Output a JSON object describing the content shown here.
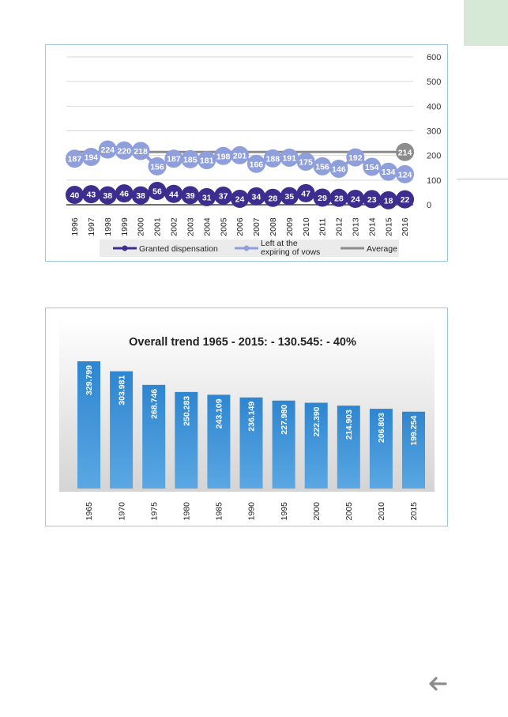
{
  "page": {
    "back_arrow_icon": "arrow-left-icon",
    "corner_tab_color": "#d6e8d6"
  },
  "chart_data": [
    {
      "type": "line",
      "title": "",
      "x": [
        "1996",
        "1997",
        "1998",
        "1999",
        "2000",
        "2001",
        "2002",
        "2003",
        "2004",
        "2005",
        "2006",
        "2007",
        "2008",
        "2009",
        "2010",
        "2011",
        "2012",
        "2013",
        "2014",
        "2015",
        "2016"
      ],
      "series": [
        {
          "name": "Granted dispensation",
          "color": "#3d2d8f",
          "values": [
            40,
            43,
            38,
            46,
            38,
            56,
            44,
            39,
            31,
            37,
            24,
            34,
            28,
            35,
            47,
            29,
            28,
            24,
            23,
            18,
            22
          ]
        },
        {
          "name": "Left at the expiring of vows",
          "color": "#8f9fdb",
          "values": [
            187,
            194,
            224,
            220,
            218,
            156,
            187,
            185,
            181,
            198,
            201,
            166,
            188,
            191,
            175,
            156,
            146,
            192,
            154,
            134,
            124
          ]
        },
        {
          "name": "Average",
          "color": "#8c8c8c",
          "values": [
            214,
            214,
            214,
            214,
            214,
            214,
            214,
            214,
            214,
            214,
            214,
            214,
            214,
            214,
            214,
            214,
            214,
            214,
            214,
            214,
            214
          ]
        }
      ],
      "y_axis_side": "right",
      "ylim": [
        0,
        600
      ],
      "yticks": [
        0,
        100,
        200,
        300,
        400,
        500,
        600
      ],
      "grid": true,
      "legend": "bottom",
      "last_point_label": "214"
    },
    {
      "type": "bar",
      "title": "Overall trend 1965 - 2015: - 130.545: - 40%",
      "categories": [
        "1965",
        "1970",
        "1975",
        "1980",
        "1985",
        "1990",
        "1995",
        "2000",
        "2005",
        "2010",
        "2015"
      ],
      "values": [
        329799,
        303981,
        268746,
        250283,
        243109,
        236149,
        227980,
        222390,
        214903,
        206803,
        199254
      ],
      "labels": [
        "329.799",
        "303.981",
        "268.746",
        "250.283",
        "243.109",
        "236.149",
        "227.980",
        "222.390",
        "214.903",
        "206.803",
        "199.254"
      ],
      "bar_color": "#3a8fd3",
      "grid": false,
      "legend": "none"
    }
  ]
}
